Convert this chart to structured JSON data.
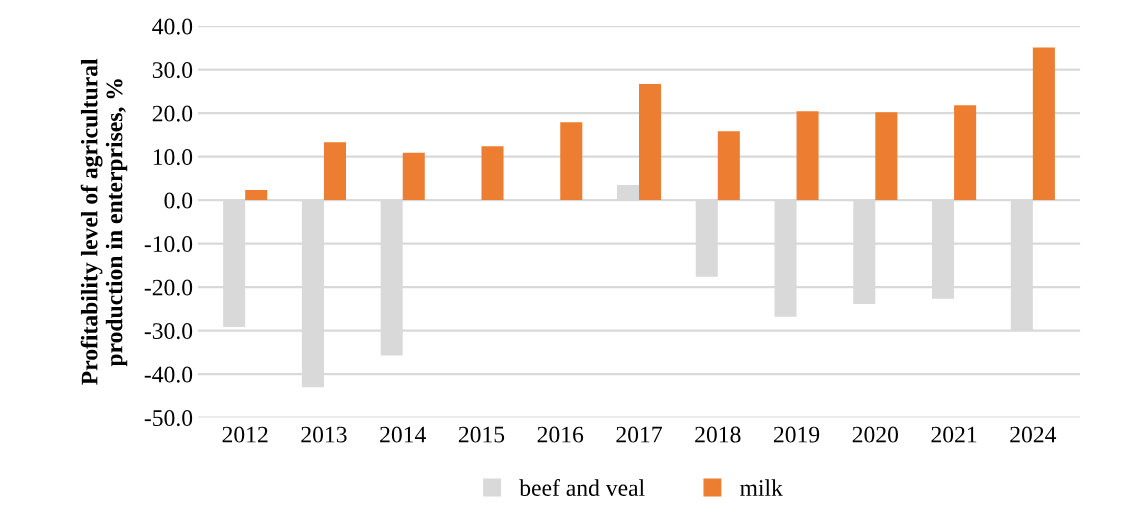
{
  "chart_data": {
    "type": "bar",
    "ylabel": "Profitability level of agricultural\nproduction in enterprises, %",
    "categories": [
      "2012",
      "2013",
      "2014",
      "2015",
      "2016",
      "2017",
      "2018",
      "2019",
      "2020",
      "2021",
      "2024"
    ],
    "series": [
      {
        "name": "beef and veal",
        "color": "#d9d9d9",
        "values": [
          -29.2,
          -43.0,
          -35.7,
          0,
          0,
          3.5,
          -17.6,
          -26.8,
          -23.9,
          -22.7,
          -29.9
        ]
      },
      {
        "name": "milk",
        "color": "#ed7d31",
        "values": [
          2.3,
          13.3,
          10.9,
          12.4,
          17.9,
          26.7,
          15.8,
          20.4,
          20.2,
          21.8,
          35.1
        ]
      }
    ],
    "ylim": [
      -50,
      40
    ],
    "yticks": [
      {
        "value": -50,
        "label": "-50.0"
      },
      {
        "value": -40,
        "label": "-40.0"
      },
      {
        "value": -30,
        "label": "-30.0"
      },
      {
        "value": -20,
        "label": "-20.0"
      },
      {
        "value": -10,
        "label": "-10.0"
      },
      {
        "value": 0,
        "label": "0.0"
      },
      {
        "value": 10,
        "label": "10.0"
      },
      {
        "value": 20,
        "label": "20.0"
      },
      {
        "value": 30,
        "label": "30.0"
      },
      {
        "value": 40,
        "label": "40.0"
      }
    ],
    "grid": "y",
    "legend": "bottom"
  }
}
